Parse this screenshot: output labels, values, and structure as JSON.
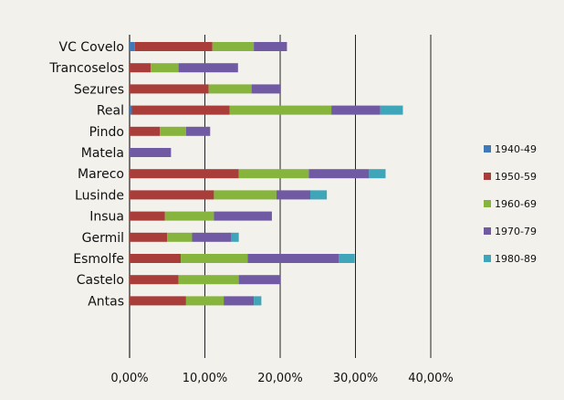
{
  "chart_data": {
    "type": "bar",
    "orientation": "horizontal",
    "stacked": true,
    "categories": [
      "VC Covelo",
      "Trancoselos",
      "Sezures",
      "Real",
      "Pindo",
      "Matela",
      "Mareco",
      "Lusinde",
      "Insua",
      "Germil",
      "Esmolfe",
      "Castelo",
      "Antas"
    ],
    "series": [
      {
        "name": "1940-49",
        "color": "#3f79b8",
        "values": [
          0.7,
          0.0,
          0.0,
          0.3,
          0.0,
          0.0,
          0.0,
          0.0,
          0.0,
          0.0,
          0.0,
          0.0,
          0.0
        ]
      },
      {
        "name": "1950-59",
        "color": "#a83d3a",
        "values": [
          10.3,
          2.8,
          10.5,
          13.0,
          4.0,
          0.0,
          14.5,
          11.2,
          4.7,
          5.0,
          6.8,
          6.5,
          7.5
        ]
      },
      {
        "name": "1960-69",
        "color": "#86b43d",
        "values": [
          5.5,
          3.7,
          5.7,
          13.5,
          3.5,
          0.0,
          9.3,
          8.3,
          6.5,
          3.3,
          8.9,
          8.0,
          5.0
        ]
      },
      {
        "name": "1970-79",
        "color": "#6f5aa3",
        "values": [
          4.4,
          7.9,
          3.9,
          6.5,
          3.2,
          5.5,
          8.0,
          4.5,
          7.7,
          5.2,
          12.1,
          5.5,
          4.0
        ]
      },
      {
        "name": "1980-89",
        "color": "#3fa5b8",
        "values": [
          0.0,
          0.0,
          0.0,
          3.0,
          0.0,
          0.0,
          2.2,
          2.2,
          0.0,
          1.0,
          2.1,
          0.0,
          1.0
        ]
      }
    ],
    "xlim": [
      0,
      40
    ],
    "x_ticks": [
      0,
      10,
      20,
      30,
      40
    ],
    "x_tick_labels": [
      "0,00%",
      "10,00%",
      "20,00%",
      "30,00%",
      "40,00%"
    ],
    "grid": "vertical",
    "legend_position": "right",
    "title": "",
    "xlabel": "",
    "ylabel": ""
  }
}
